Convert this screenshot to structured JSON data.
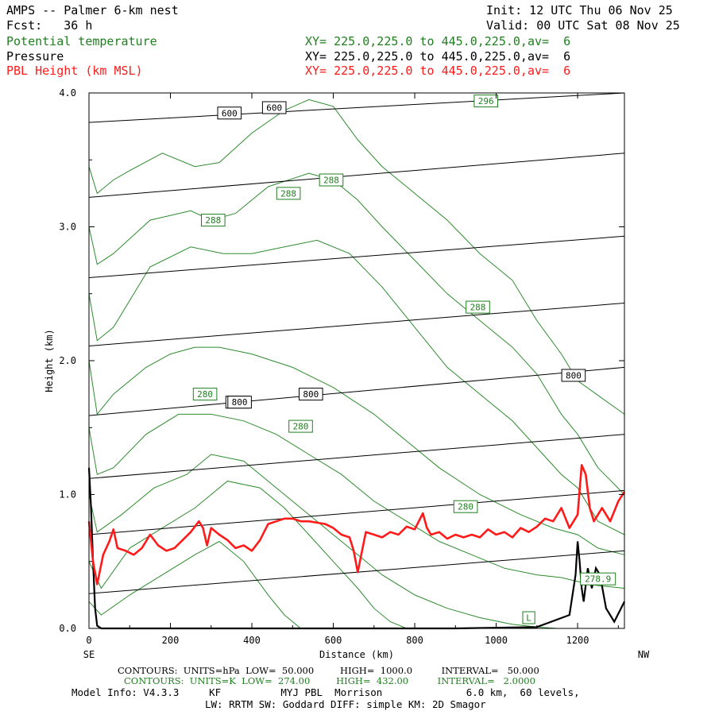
{
  "header": {
    "title": "AMPS -- Palmer 6-km nest",
    "forecast": "Fcst:   36 h",
    "init": "Init: 12 UTC Thu 06 Nov 25",
    "valid": "Valid: 00 UTC Sat 08 Nov 25",
    "fields": [
      {
        "name": "Potential temperature",
        "xy": "XY= 225.0,225.0 to 445.0,225.0,av=  6",
        "color": "#1f7f1f"
      },
      {
        "name": "Pressure",
        "xy": "XY= 225.0,225.0 to 445.0,225.0,av=  6",
        "color": "#000000"
      },
      {
        "name": "PBL Height (km MSL)",
        "xy": "XY= 225.0,225.0 to 445.0,225.0,av=  6",
        "color": "#ff1a1a"
      }
    ]
  },
  "chart_data": {
    "type": "line",
    "xlabel": "Distance (km)",
    "ylabel": "Height (km)",
    "xlim": [
      0,
      1315
    ],
    "ylim": [
      0,
      4.0
    ],
    "x_ticks": [
      0,
      200,
      400,
      600,
      800,
      1000,
      1200
    ],
    "y_ticks": [
      "0.0",
      "1.0",
      "2.0",
      "3.0",
      "4.0"
    ],
    "left_end_label": "SE",
    "right_end_label": "NW",
    "pressure_contours_hPa": [
      {
        "level": 600,
        "x": [
          0,
          1315
        ],
        "y": [
          3.78,
          4.05
        ]
      },
      {
        "level": null,
        "x": [
          0,
          1315
        ],
        "y": [
          3.22,
          3.55
        ]
      },
      {
        "level": null,
        "x": [
          0,
          1315
        ],
        "y": [
          2.62,
          2.93
        ]
      },
      {
        "level": null,
        "x": [
          0,
          1315
        ],
        "y": [
          2.11,
          2.43
        ]
      },
      {
        "level": 800,
        "x": [
          0,
          1315
        ],
        "y": [
          1.59,
          1.95
        ]
      },
      {
        "level": null,
        "x": [
          0,
          1315
        ],
        "y": [
          1.12,
          1.45
        ]
      },
      {
        "level": null,
        "x": [
          0,
          1315
        ],
        "y": [
          0.7,
          1.03
        ]
      },
      {
        "level": null,
        "x": [
          0,
          1315
        ],
        "y": [
          0.26,
          0.58
        ]
      }
    ],
    "pressure_labels": [
      {
        "text": "600",
        "x": 345,
        "y": 3.85
      },
      {
        "text": "600",
        "x": 455,
        "y": 3.89
      },
      {
        "text": "800",
        "x": 365,
        "y": 1.69
      },
      {
        "text": "800",
        "x": 545,
        "y": 1.75
      },
      {
        "text": "800",
        "x": 1190,
        "y": 1.89
      },
      {
        "text": "800",
        "x": 370,
        "y": 1.69
      }
    ],
    "theta_labels": [
      {
        "text": "296",
        "x": 975,
        "y": 3.94
      },
      {
        "text": "288",
        "x": 305,
        "y": 3.05
      },
      {
        "text": "288",
        "x": 490,
        "y": 3.25
      },
      {
        "text": "288",
        "x": 595,
        "y": 3.35
      },
      {
        "text": "288",
        "x": 955,
        "y": 2.4
      },
      {
        "text": "280",
        "x": 285,
        "y": 1.75
      },
      {
        "text": "280",
        "x": 520,
        "y": 1.51
      },
      {
        "text": "280",
        "x": 925,
        "y": 0.91
      },
      {
        "text": "278.9",
        "x": 1250,
        "y": 0.37
      },
      {
        "text": "L",
        "x": 1080,
        "y": 0.08
      }
    ],
    "theta_contours_K": [
      {
        "x": [
          0,
          20,
          60,
          150,
          250,
          330,
          400,
          480,
          560,
          640,
          720,
          800,
          880,
          960,
          1040,
          1100,
          1160,
          1200,
          1250,
          1315
        ],
        "y": [
          2.5,
          2.15,
          2.25,
          2.7,
          2.85,
          2.8,
          2.8,
          2.85,
          2.9,
          2.8,
          2.55,
          2.25,
          1.95,
          1.75,
          1.55,
          1.35,
          1.15,
          1.05,
          0.8,
          0.7
        ]
      },
      {
        "x": [
          0,
          20,
          60,
          150,
          250,
          300,
          360,
          440,
          540,
          600,
          660,
          720,
          800,
          880,
          960,
          1040,
          1100,
          1160,
          1200,
          1250,
          1315
        ],
        "y": [
          3.0,
          2.72,
          2.8,
          3.05,
          3.12,
          3.05,
          3.1,
          3.3,
          3.4,
          3.35,
          3.2,
          3.0,
          2.75,
          2.5,
          2.3,
          2.1,
          1.9,
          1.6,
          1.45,
          1.2,
          1.0
        ]
      },
      {
        "x": [
          0,
          20,
          60,
          100,
          180,
          260,
          320,
          400,
          480,
          540,
          600,
          660,
          720,
          800,
          880,
          960,
          1040,
          1100,
          1160,
          1200,
          1315
        ],
        "y": [
          3.45,
          3.25,
          3.35,
          3.42,
          3.55,
          3.45,
          3.48,
          3.7,
          3.87,
          3.95,
          3.9,
          3.65,
          3.45,
          3.25,
          3.05,
          2.8,
          2.6,
          2.3,
          2.05,
          1.85,
          1.6
        ]
      },
      {
        "x": [
          0,
          20,
          60,
          140,
          200,
          260,
          320,
          400,
          500,
          600,
          700,
          780,
          860,
          960,
          1060,
          1140,
          1200,
          1250,
          1315
        ],
        "y": [
          2.0,
          1.6,
          1.75,
          1.95,
          2.05,
          2.1,
          2.1,
          2.05,
          1.95,
          1.8,
          1.6,
          1.4,
          1.2,
          1.0,
          0.85,
          0.75,
          0.7,
          0.6,
          0.55
        ]
      },
      {
        "x": [
          0,
          20,
          60,
          140,
          220,
          300,
          380,
          460,
          540,
          620,
          700,
          780,
          860,
          940,
          1020,
          1100,
          1160,
          1200,
          1250,
          1315
        ],
        "y": [
          1.5,
          1.15,
          1.2,
          1.45,
          1.6,
          1.6,
          1.55,
          1.45,
          1.3,
          1.15,
          0.95,
          0.8,
          0.65,
          0.55,
          0.45,
          0.4,
          0.38,
          0.35,
          0.32,
          0.3
        ]
      },
      {
        "x": [
          0,
          20,
          80,
          160,
          240,
          300,
          380,
          460,
          540,
          600,
          660,
          720,
          800,
          880,
          960,
          1040,
          1100,
          1150
        ],
        "y": [
          1.0,
          0.72,
          0.85,
          1.05,
          1.15,
          1.3,
          1.25,
          1.05,
          0.85,
          0.7,
          0.55,
          0.4,
          0.25,
          0.15,
          0.08,
          0.03,
          0.01,
          0.0
        ]
      },
      {
        "x": [
          0,
          30,
          100,
          180,
          260,
          340,
          420,
          480,
          540,
          600,
          660,
          700,
          740,
          780
        ],
        "y": [
          0.5,
          0.3,
          0.6,
          0.75,
          0.9,
          1.1,
          1.05,
          0.9,
          0.7,
          0.5,
          0.3,
          0.15,
          0.05,
          0.0
        ]
      },
      {
        "x": [
          0,
          30,
          100,
          180,
          260,
          320,
          380,
          440,
          480,
          520
        ],
        "y": [
          0.2,
          0.1,
          0.25,
          0.4,
          0.55,
          0.65,
          0.5,
          0.25,
          0.1,
          0.0
        ]
      }
    ],
    "pbl_height_km": {
      "x": [
        0,
        10,
        20,
        35,
        50,
        60,
        70,
        90,
        110,
        130,
        150,
        170,
        190,
        210,
        230,
        250,
        270,
        280,
        290,
        300,
        320,
        340,
        360,
        380,
        400,
        420,
        440,
        460,
        480,
        500,
        520,
        540,
        560,
        580,
        600,
        620,
        640,
        650,
        660,
        680,
        700,
        720,
        740,
        760,
        780,
        800,
        820,
        830,
        840,
        860,
        880,
        900,
        920,
        940,
        960,
        980,
        1000,
        1020,
        1040,
        1060,
        1080,
        1100,
        1120,
        1140,
        1160,
        1180,
        1200,
        1210,
        1220,
        1230,
        1240,
        1260,
        1280,
        1300,
        1315
      ],
      "y": [
        0.8,
        0.5,
        0.33,
        0.55,
        0.65,
        0.74,
        0.6,
        0.58,
        0.55,
        0.6,
        0.7,
        0.62,
        0.58,
        0.6,
        0.66,
        0.72,
        0.8,
        0.75,
        0.62,
        0.75,
        0.7,
        0.66,
        0.6,
        0.62,
        0.58,
        0.66,
        0.78,
        0.8,
        0.82,
        0.82,
        0.8,
        0.8,
        0.79,
        0.78,
        0.75,
        0.7,
        0.68,
        0.58,
        0.42,
        0.72,
        0.7,
        0.68,
        0.72,
        0.7,
        0.76,
        0.74,
        0.86,
        0.75,
        0.7,
        0.72,
        0.67,
        0.7,
        0.68,
        0.7,
        0.68,
        0.74,
        0.7,
        0.72,
        0.68,
        0.75,
        0.72,
        0.76,
        0.82,
        0.8,
        0.9,
        0.75,
        0.85,
        1.22,
        1.15,
        0.9,
        0.8,
        0.9,
        0.8,
        0.95,
        1.02
      ]
    },
    "terrain_km": {
      "x": [
        0,
        5,
        10,
        15,
        20,
        30,
        60,
        150,
        300,
        600,
        900,
        1100,
        1180,
        1195,
        1200,
        1205,
        1210,
        1215,
        1225,
        1235,
        1245,
        1255,
        1270,
        1290,
        1315
      ],
      "y": [
        1.2,
        0.9,
        0.5,
        0.15,
        0.02,
        0.0,
        0.0,
        0.0,
        0.0,
        0.0,
        0.0,
        0.01,
        0.1,
        0.4,
        0.65,
        0.5,
        0.3,
        0.2,
        0.45,
        0.3,
        0.45,
        0.4,
        0.15,
        0.05,
        0.2
      ]
    },
    "footer": {
      "line1": "CONTOURS:  UNITS=hPa  LOW=  50.000         HIGH=  1000.0          INTERVAL=   50.000",
      "line2": "CONTOURS:  UNITS=K  LOW=  274.00         HIGH=  432.00          INTERVAL=   2.0000",
      "line3": "Model Info: V4.3.3     KF          MYJ PBL  Morrison              6.0 km,  60 levels,",
      "line4": "LW: RRTM SW: Goddard DIFF: simple KM: 2D Smagor"
    }
  }
}
